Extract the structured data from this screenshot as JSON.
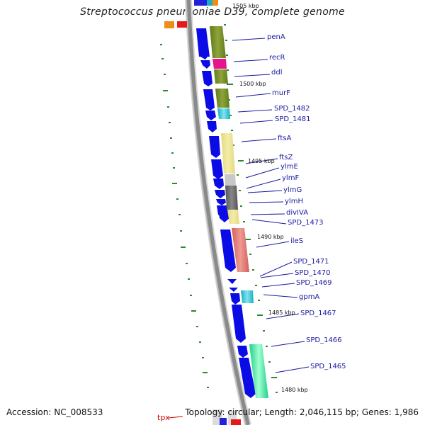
{
  "title": "Streptococcus pneumoniae D39, complete genome",
  "accession": "Accession: NC_008533",
  "summary": "Topology: circular; Length: 2,046,115 bp; Genes: 1,986",
  "colors": {
    "backbone": "#8a8a8a",
    "cds_arrow": "#0b0be6",
    "label": "#1a1aa0",
    "tick": "#2a8a2a",
    "tpx_label": "#cc0000"
  },
  "kbp_labels": [
    "1505 kbp",
    "1500 kbp",
    "1495 kbp",
    "1490 kbp",
    "1485 kbp",
    "1480 kbp"
  ],
  "gene_labels": [
    "penA",
    "recR",
    "ddl",
    "murF",
    "SPD_1482",
    "SPD_1481",
    "ftsA",
    "ftsZ",
    "ylmE",
    "ylmF",
    "ylmG",
    "ylmH",
    "divIVA",
    "SPD_1473",
    "ileS",
    "SPD_1471",
    "SPD_1470",
    "SPD_1469",
    "gpmA",
    "SPD_1467",
    "SPD_1466",
    "SPD_1465"
  ],
  "tpx_label": "tpx"
}
